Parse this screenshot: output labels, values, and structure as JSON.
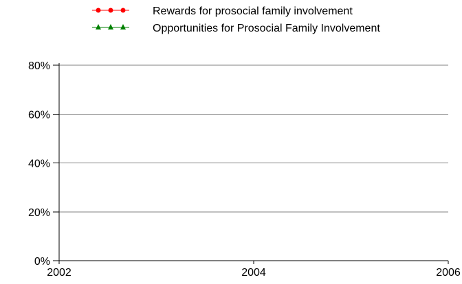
{
  "chart_data": {
    "type": "line",
    "title": "",
    "xlabel": "",
    "ylabel": "",
    "x_ticks": [
      "2002",
      "2004",
      "2006"
    ],
    "y_ticks": [
      "0%",
      "20%",
      "40%",
      "60%",
      "80%"
    ],
    "xlim": [
      2002,
      2006
    ],
    "ylim": [
      0,
      80
    ],
    "grid": true,
    "legend_position": "top",
    "series": [
      {
        "name": "Rewards for prosocial family involvement",
        "color": "#ff0000",
        "marker": "circle",
        "points": []
      },
      {
        "name": "Opportunities for Prosocial Family Involvement",
        "color": "#008000",
        "marker": "triangle",
        "points": []
      }
    ]
  }
}
